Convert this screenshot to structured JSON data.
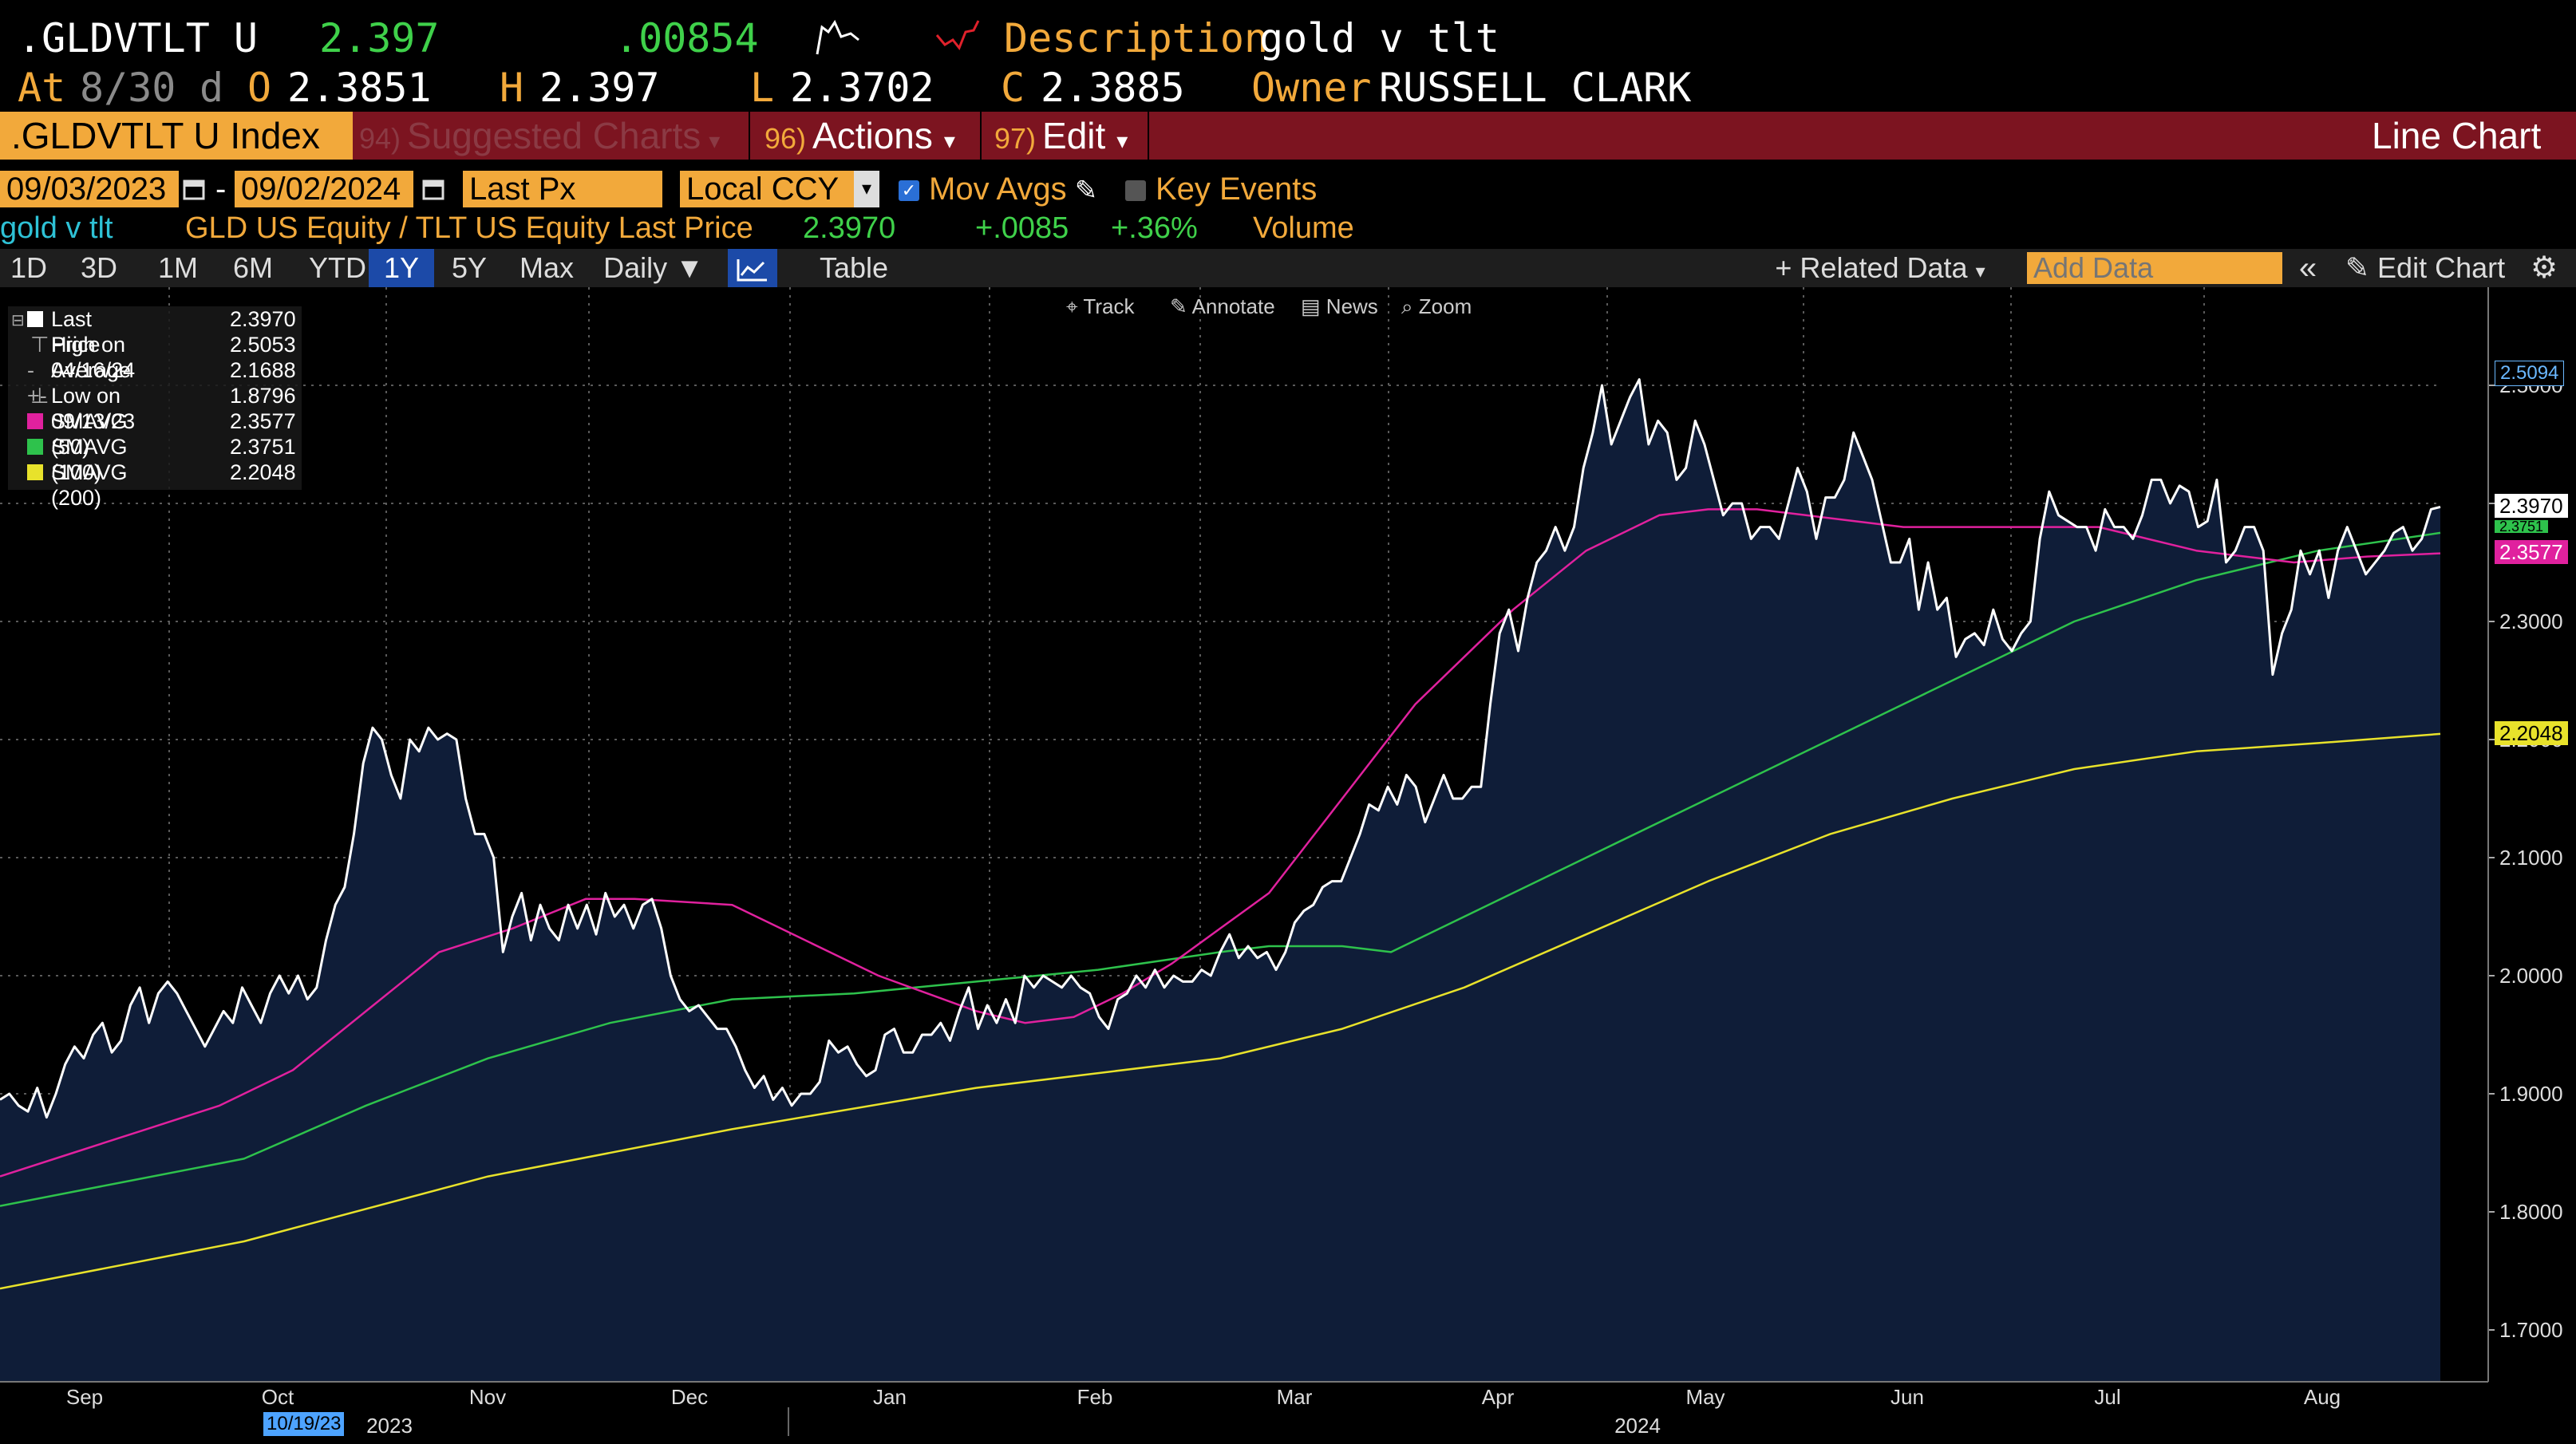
{
  "header": {
    "ticker": ".GLDVTLT U",
    "last": "2.397",
    "change": ".00854",
    "desc_label": "Description",
    "desc_value": "gold v tlt",
    "at_label": "At",
    "at_value": "8/30",
    "d_label": "d",
    "o_label": "O",
    "o_value": "2.3851",
    "h_label": "H",
    "h_value": "2.397",
    "l_label": "L",
    "l_value": "2.3702",
    "c_label": "C",
    "c_value": "2.3885",
    "owner_label": "Owner",
    "owner_value": "RUSSELL CLARK"
  },
  "toolbar": {
    "index": ".GLDVTLT U Index",
    "suggested_num": "94)",
    "suggested": "Suggested Charts",
    "actions_num": "96)",
    "actions": "Actions",
    "edit_num": "97)",
    "edit": "Edit",
    "chart_type": "Line Chart"
  },
  "controls": {
    "start_date": "09/03/2023",
    "end_date": "09/02/2024",
    "field": "Last Px",
    "currency": "Local CCY",
    "mov_avgs": "Mov Avgs",
    "key_events": "Key Events"
  },
  "info": {
    "name": "gold v tlt",
    "desc": "GLD US Equity / TLT US Equity Last Price",
    "value": "2.3970",
    "change": "+.0085",
    "pct": "+.36%",
    "volume": "Volume"
  },
  "tabs": [
    "1D",
    "3D",
    "1M",
    "6M",
    "YTD",
    "1Y",
    "5Y",
    "Max"
  ],
  "active_tab": "1Y",
  "frequency": "Daily",
  "table_label": "Table",
  "related_data": "Related Data",
  "add_data_placeholder": "Add Data",
  "edit_chart": "Edit Chart",
  "chart_tools": [
    "Track",
    "Annotate",
    "News",
    "Zoom"
  ],
  "legend": [
    {
      "label": "Last Price",
      "value": "2.3970",
      "color": "#ffffff"
    },
    {
      "label": "High on 04/16/24",
      "value": "2.5053"
    },
    {
      "label": "Average",
      "value": "2.1688"
    },
    {
      "label": "Low on 09/13/23",
      "value": "1.8796"
    },
    {
      "label": "SMAVG (50)",
      "value": "2.3577",
      "color": "#e0219e"
    },
    {
      "label": "SMAVG (100)",
      "value": "2.3751",
      "color": "#2ec24c"
    },
    {
      "label": "SMAVG (200)",
      "value": "2.2048",
      "color": "#e8e22b"
    }
  ],
  "chart_data": {
    "type": "line",
    "ylim": [
      1.66,
      2.54
    ],
    "yticks": [
      "2.5000",
      "2.4000",
      "2.3000",
      "2.2000",
      "2.1000",
      "2.0000",
      "1.9000",
      "1.8000",
      "1.7000"
    ],
    "xtick_labels": [
      "Sep",
      "Oct",
      "Nov",
      "Dec",
      "Jan",
      "Feb",
      "Mar",
      "Apr",
      "May",
      "Jun",
      "Jul",
      "Aug"
    ],
    "year_labels": [
      "2023",
      "2024"
    ],
    "cursor_date": "10/19/23",
    "right_tags": [
      "2.5094",
      "2.3970",
      "2.3751",
      "2.3577",
      "2.2048"
    ],
    "series": [
      {
        "name": "Last Price",
        "color": "#ffffff",
        "values": [
          1.895,
          1.9,
          1.89,
          1.885,
          1.905,
          1.88,
          1.9,
          1.925,
          1.94,
          1.93,
          1.95,
          1.96,
          1.935,
          1.945,
          1.975,
          1.99,
          1.96,
          1.985,
          1.995,
          1.985,
          1.97,
          1.955,
          1.94,
          1.955,
          1.97,
          1.96,
          1.99,
          1.975,
          1.96,
          1.985,
          2.0,
          1.985,
          2.0,
          1.98,
          1.99,
          2.03,
          2.06,
          2.075,
          2.12,
          2.18,
          2.21,
          2.2,
          2.17,
          2.15,
          2.2,
          2.19,
          2.21,
          2.2,
          2.205,
          2.2,
          2.15,
          2.12,
          2.12,
          2.1,
          2.02,
          2.05,
          2.07,
          2.03,
          2.06,
          2.04,
          2.03,
          2.06,
          2.04,
          2.06,
          2.035,
          2.07,
          2.05,
          2.06,
          2.04,
          2.06,
          2.065,
          2.04,
          2.0,
          1.98,
          1.97,
          1.975,
          1.965,
          1.955,
          1.955,
          1.94,
          1.92,
          1.905,
          1.915,
          1.895,
          1.905,
          1.89,
          1.9,
          1.9,
          1.91,
          1.945,
          1.935,
          1.94,
          1.925,
          1.915,
          1.92,
          1.95,
          1.955,
          1.935,
          1.935,
          1.95,
          1.95,
          1.96,
          1.945,
          1.97,
          1.99,
          1.955,
          1.975,
          1.96,
          1.98,
          1.96,
          2.0,
          1.99,
          2.0,
          1.995,
          1.99,
          2.0,
          1.99,
          1.985,
          1.965,
          1.955,
          1.98,
          1.985,
          2.0,
          1.99,
          2.005,
          1.99,
          2.0,
          1.995,
          1.995,
          2.005,
          2.0,
          2.02,
          2.035,
          2.015,
          2.025,
          2.015,
          2.02,
          2.005,
          2.02,
          2.045,
          2.055,
          2.06,
          2.075,
          2.08,
          2.08,
          2.1,
          2.12,
          2.145,
          2.14,
          2.16,
          2.145,
          2.17,
          2.16,
          2.13,
          2.15,
          2.17,
          2.15,
          2.15,
          2.16,
          2.16,
          2.23,
          2.29,
          2.31,
          2.275,
          2.32,
          2.35,
          2.36,
          2.38,
          2.36,
          2.38,
          2.43,
          2.46,
          2.5,
          2.45,
          2.47,
          2.49,
          2.505,
          2.45,
          2.47,
          2.46,
          2.42,
          2.43,
          2.47,
          2.45,
          2.42,
          2.39,
          2.4,
          2.4,
          2.37,
          2.38,
          2.38,
          2.37,
          2.4,
          2.43,
          2.41,
          2.37,
          2.405,
          2.405,
          2.42,
          2.46,
          2.44,
          2.42,
          2.385,
          2.35,
          2.35,
          2.37,
          2.31,
          2.35,
          2.31,
          2.32,
          2.27,
          2.285,
          2.29,
          2.28,
          2.31,
          2.285,
          2.275,
          2.29,
          2.3,
          2.37,
          2.41,
          2.39,
          2.385,
          2.38,
          2.38,
          2.36,
          2.395,
          2.38,
          2.38,
          2.37,
          2.39,
          2.42,
          2.42,
          2.4,
          2.415,
          2.41,
          2.38,
          2.385,
          2.42,
          2.35,
          2.36,
          2.38,
          2.38,
          2.36,
          2.255,
          2.29,
          2.31,
          2.36,
          2.34,
          2.36,
          2.32,
          2.36,
          2.38,
          2.36,
          2.34,
          2.35,
          2.36,
          2.375,
          2.38,
          2.36,
          2.37,
          2.395,
          2.397
        ]
      },
      {
        "name": "SMAVG (50)",
        "color": "#e0219e",
        "x": [
          0,
          0.03,
          0.06,
          0.09,
          0.12,
          0.15,
          0.18,
          0.21,
          0.24,
          0.26,
          0.3,
          0.34,
          0.36,
          0.38,
          0.4,
          0.42,
          0.44,
          0.46,
          0.48,
          0.5,
          0.52,
          0.55,
          0.58,
          0.62,
          0.65,
          0.68,
          0.7,
          0.72,
          0.74,
          0.76,
          0.78,
          0.8,
          0.82,
          0.86,
          0.9,
          0.94,
          0.97,
          1.0
        ],
        "values": [
          1.83,
          1.85,
          1.87,
          1.89,
          1.92,
          1.97,
          2.02,
          2.04,
          2.065,
          2.065,
          2.06,
          2.02,
          2.0,
          1.985,
          1.97,
          1.96,
          1.965,
          1.985,
          2.01,
          2.04,
          2.07,
          2.15,
          2.23,
          2.31,
          2.36,
          2.39,
          2.395,
          2.395,
          2.39,
          2.385,
          2.38,
          2.38,
          2.38,
          2.38,
          2.36,
          2.35,
          2.355,
          2.3577
        ]
      },
      {
        "name": "SMAVG (100)",
        "color": "#2ec24c",
        "x": [
          0,
          0.05,
          0.1,
          0.15,
          0.2,
          0.25,
          0.3,
          0.35,
          0.4,
          0.45,
          0.5,
          0.52,
          0.55,
          0.57,
          0.6,
          0.65,
          0.7,
          0.75,
          0.8,
          0.85,
          0.9,
          0.95,
          1.0
        ],
        "values": [
          1.805,
          1.825,
          1.845,
          1.89,
          1.93,
          1.96,
          1.98,
          1.985,
          1.995,
          2.005,
          2.02,
          2.025,
          2.025,
          2.02,
          2.05,
          2.1,
          2.15,
          2.2,
          2.25,
          2.3,
          2.335,
          2.36,
          2.3751
        ]
      },
      {
        "name": "SMAVG (200)",
        "color": "#e8e22b",
        "x": [
          0,
          0.1,
          0.2,
          0.3,
          0.4,
          0.5,
          0.55,
          0.6,
          0.65,
          0.7,
          0.75,
          0.8,
          0.85,
          0.9,
          0.95,
          1.0
        ],
        "values": [
          1.735,
          1.775,
          1.83,
          1.87,
          1.905,
          1.93,
          1.955,
          1.99,
          2.035,
          2.08,
          2.12,
          2.15,
          2.175,
          2.19,
          2.197,
          2.2048
        ]
      }
    ]
  }
}
